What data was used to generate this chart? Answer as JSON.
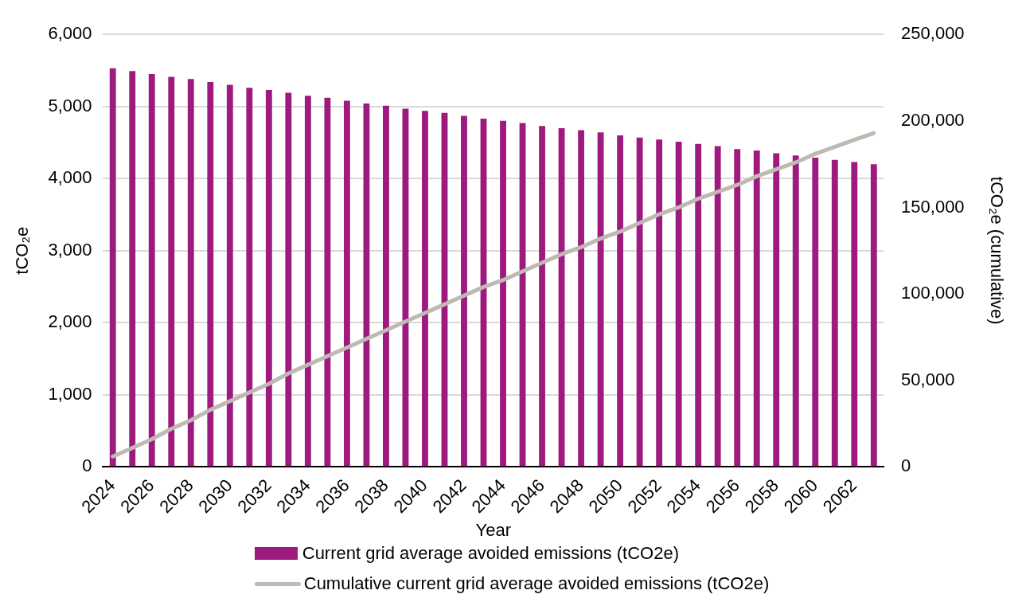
{
  "chart_data": {
    "type": "bar",
    "xlabel": "Year",
    "ylabel": "tCO₂e",
    "y2label": "tCO₂e (cumulative)",
    "categories": [
      "2024",
      null,
      "2026",
      null,
      "2028",
      null,
      "2030",
      null,
      "2032",
      null,
      "2034",
      null,
      "2036",
      null,
      "2038",
      null,
      "2040",
      null,
      "2042",
      null,
      "2044",
      null,
      "2046",
      null,
      "2048",
      null,
      "2050",
      null,
      "2052",
      null,
      "2054",
      null,
      "2056",
      null,
      "2058",
      null,
      "2060",
      null,
      "2062",
      null
    ],
    "series": [
      {
        "name": "Current grid average avoided emissions (tCO2e)",
        "color": "#9e1a7e",
        "values": [
          5530,
          5490,
          5450,
          5410,
          5380,
          5340,
          5300,
          5260,
          5230,
          5190,
          5150,
          5120,
          5080,
          5040,
          5010,
          4970,
          4940,
          4910,
          4870,
          4830,
          4800,
          4770,
          4730,
          4700,
          4670,
          4640,
          4600,
          4570,
          4540,
          4510,
          4480,
          4450,
          4410,
          4390,
          4350,
          4320,
          4290,
          4260,
          4230,
          4200
        ]
      },
      {
        "name": "Cumulative current grid average avoided emissions (tCO2e)",
        "type": "line",
        "axis": "y2",
        "color": "#bfb8b3",
        "values": [
          6000,
          11000,
          16000,
          22000,
          27000,
          33000,
          38000,
          43000,
          48000,
          54000,
          59000,
          64000,
          69000,
          74000,
          79000,
          84000,
          89000,
          94000,
          99000,
          104000,
          108000,
          113000,
          118000,
          123000,
          127000,
          132000,
          136000,
          141000,
          146000,
          150000,
          155000,
          159000,
          163000,
          168000,
          172000,
          176000,
          181000,
          185000,
          189000,
          193000
        ]
      }
    ],
    "ylim": [
      0,
      6000
    ],
    "yticks": [
      {
        "value": 0,
        "label": "0"
      },
      {
        "value": 1000,
        "label": "1,000"
      },
      {
        "value": 2000,
        "label": "2,000"
      },
      {
        "value": 3000,
        "label": "3,000"
      },
      {
        "value": 4000,
        "label": "4,000"
      },
      {
        "value": 5000,
        "label": "5,000"
      },
      {
        "value": 6000,
        "label": "6,000"
      }
    ],
    "y2lim": [
      0,
      250000
    ],
    "y2ticks": [
      {
        "value": 0,
        "label": "0"
      },
      {
        "value": 50000,
        "label": "50,000"
      },
      {
        "value": 100000,
        "label": "100,000"
      },
      {
        "value": 150000,
        "label": "150,000"
      },
      {
        "value": 200000,
        "label": "200,000"
      },
      {
        "value": 250000,
        "label": "250,000"
      }
    ],
    "grid": "y",
    "legend": "bottom",
    "marker": "none",
    "line_style": "solid"
  }
}
